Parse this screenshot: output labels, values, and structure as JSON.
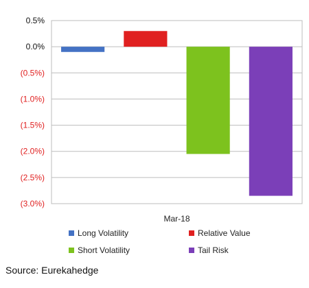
{
  "chart_data": {
    "type": "bar",
    "categories": [
      "Mar-18"
    ],
    "series": [
      {
        "name": "Long Volatility",
        "values": [
          -0.1
        ],
        "color": "#4472C4"
      },
      {
        "name": "Relative Value",
        "values": [
          0.3
        ],
        "color": "#E02020"
      },
      {
        "name": "Short Volatility",
        "values": [
          -2.05
        ],
        "color": "#7DC21E"
      },
      {
        "name": "Tail Risk",
        "values": [
          -2.85
        ],
        "color": "#7B3FB8"
      }
    ],
    "ylim": [
      -3.0,
      0.5
    ],
    "yticks": [
      0.5,
      0.0,
      -0.5,
      -1.0,
      -1.5,
      -2.0,
      -2.5,
      -3.0
    ],
    "ytick_labels": [
      "0.5%",
      "0.0%",
      "(0.5%)",
      "(1.0%)",
      "(1.5%)",
      "(2.0%)",
      "(2.5%)",
      "(3.0%)"
    ],
    "positive_tick_color": "#111111",
    "negative_tick_color": "#E02020",
    "grid": true,
    "legend_position": "bottom",
    "title": "",
    "xlabel": "",
    "ylabel": ""
  },
  "source": "Source: Eurekahedge"
}
